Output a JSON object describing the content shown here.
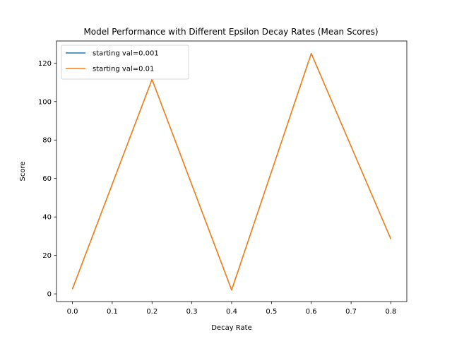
{
  "chart_data": {
    "type": "line",
    "title": "Model Performance with Different Epsilon Decay Rates (Mean Scores)",
    "xlabel": "Decay Rate",
    "ylabel": "Score",
    "xlim": [
      -0.04,
      0.84
    ],
    "ylim": [
      -4.0,
      131.5
    ],
    "x_ticks": [
      0.0,
      0.1,
      0.2,
      0.3,
      0.4,
      0.5,
      0.6,
      0.7,
      0.8
    ],
    "x_tick_labels": [
      "0.0",
      "0.1",
      "0.2",
      "0.3",
      "0.4",
      "0.5",
      "0.6",
      "0.7",
      "0.8"
    ],
    "y_ticks": [
      0,
      20,
      40,
      60,
      80,
      100,
      120
    ],
    "y_tick_labels": [
      "0",
      "20",
      "40",
      "60",
      "80",
      "100",
      "120"
    ],
    "grid": false,
    "legend_position": "top-left",
    "x": [
      0.0,
      0.2,
      0.4,
      0.6,
      0.8
    ],
    "series": [
      {
        "name": "starting val=0.001",
        "color": "#1f77b4",
        "values": [
          2.5,
          111.5,
          2.0,
          125.0,
          28.5
        ]
      },
      {
        "name": "starting val=0.01",
        "color": "#ff7f0e",
        "values": [
          2.5,
          111.5,
          2.0,
          125.0,
          28.5
        ]
      }
    ]
  }
}
